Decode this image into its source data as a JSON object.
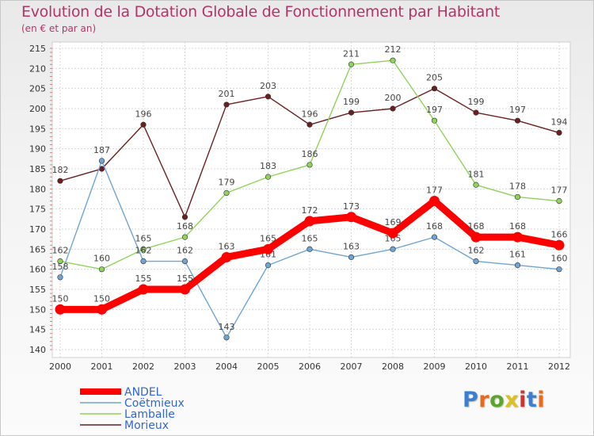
{
  "title": "Evolution de la Dotation Globale de Fonctionnement par Habitant",
  "subtitle": "(en € et par an)",
  "logo": {
    "text": "Proxiti",
    "letter_colors": [
      "#3a7fd0",
      "#e86a1a",
      "#5aa52a",
      "#e0c020",
      "#d8302a",
      "#3a7fd0",
      "#e86a1a"
    ]
  },
  "chart_data": {
    "type": "line",
    "x": [
      "2000",
      "2001",
      "2002",
      "2003",
      "2004",
      "2005",
      "2006",
      "2007",
      "2008",
      "2009",
      "2010",
      "2011",
      "2012"
    ],
    "ylim": [
      140,
      215
    ],
    "yticks": [
      140,
      145,
      150,
      155,
      160,
      165,
      170,
      175,
      180,
      185,
      190,
      195,
      200,
      205,
      210,
      215
    ],
    "grid": true,
    "legend_position": "bottom-left",
    "series": [
      {
        "name": "Morieux",
        "color": "#6b1f1f",
        "values": [
          182,
          185,
          196,
          173,
          201,
          203,
          196,
          199,
          200,
          205,
          199,
          197,
          194
        ],
        "labels": [
          "182",
          "",
          "196",
          "",
          "201",
          "203",
          "196",
          "199",
          "200",
          "205",
          "199",
          "197",
          "194"
        ]
      },
      {
        "name": "Lamballe",
        "color": "#8fd35a",
        "values": [
          162,
          160,
          165,
          168,
          179,
          183,
          186,
          211,
          212,
          197,
          181,
          178,
          177
        ],
        "labels": [
          "162",
          "160",
          "165",
          "168",
          "179",
          "183",
          "186",
          "211",
          "212",
          "197",
          "181",
          "178",
          "177"
        ]
      },
      {
        "name": "Coëtmieux",
        "color": "#6fa4d4",
        "values": [
          158,
          187,
          162,
          162,
          143,
          161,
          165,
          163,
          165,
          168,
          162,
          161,
          160
        ],
        "labels": [
          "158",
          "187",
          "162",
          "162",
          "143",
          "161",
          "165",
          "163",
          "165",
          "168",
          "162",
          "161",
          "160"
        ]
      },
      {
        "name": "ANDEL",
        "color": "#ff0000",
        "values": [
          150,
          150,
          155,
          155,
          163,
          165,
          172,
          173,
          169,
          177,
          168,
          168,
          166
        ],
        "labels": [
          "150",
          "150",
          "155",
          "155",
          "163",
          "165",
          "172",
          "173",
          "169",
          "177",
          "168",
          "168",
          "166"
        ]
      }
    ],
    "legend": [
      "ANDEL",
      "Coëtmieux",
      "Lamballe",
      "Morieux"
    ]
  }
}
